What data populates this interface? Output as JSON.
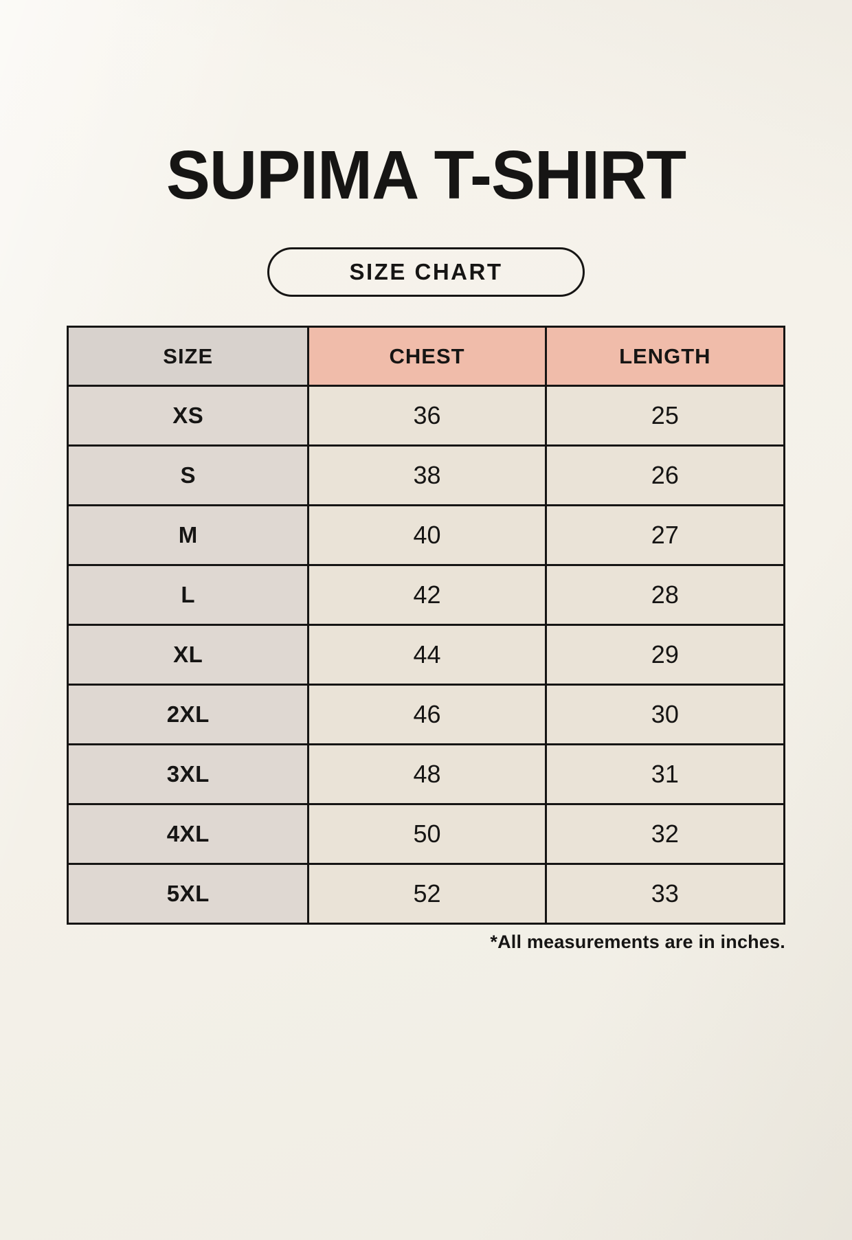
{
  "page": {
    "title": "SUPIMA T-SHIRT"
  },
  "size_chart_button": {
    "label": "SIZE CHART"
  },
  "table": {
    "headers": [
      "SIZE",
      "CHEST",
      "LENGTH"
    ],
    "rows": [
      {
        "size": "XS",
        "chest": "36",
        "length": "25"
      },
      {
        "size": "S",
        "chest": "38",
        "length": "26"
      },
      {
        "size": "M",
        "chest": "40",
        "length": "27"
      },
      {
        "size": "L",
        "chest": "42",
        "length": "28"
      },
      {
        "size": "XL",
        "chest": "44",
        "length": "29"
      },
      {
        "size": "2XL",
        "chest": "46",
        "length": "30"
      },
      {
        "size": "3XL",
        "chest": "48",
        "length": "31"
      },
      {
        "size": "4XL",
        "chest": "50",
        "length": "32"
      },
      {
        "size": "5XL",
        "chest": "52",
        "length": "33"
      }
    ]
  },
  "footnote": "*All measurements are in inches.",
  "colors": {
    "background": "#F4F1E9",
    "header_accent": "#F0BCAA",
    "header_size": "#D8D2CD",
    "size_column": "#DFD8D2",
    "data_cell": "#EAE3D7",
    "border": "#161514",
    "text": "#161514"
  }
}
